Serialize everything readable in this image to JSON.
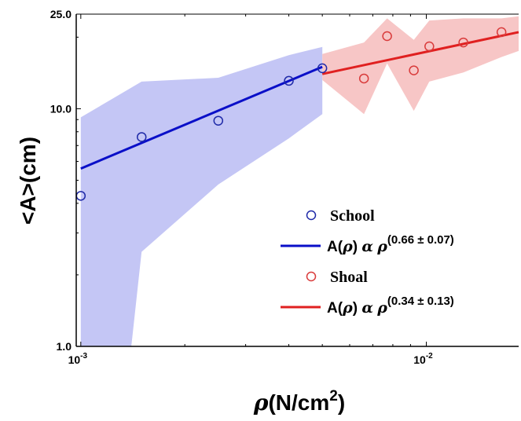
{
  "chart_data": {
    "type": "scatter",
    "x_scale": "log",
    "y_scale": "log",
    "xlim": [
      0.00097,
      0.0185
    ],
    "ylim": [
      1.0,
      25.0
    ],
    "grid": false,
    "legend_position": "bottom-right",
    "xlabel": {
      "prefix": "ρ",
      "main": "(N/cm",
      "sup": "2",
      "suffix": ")"
    },
    "ylabel": "<A>(cm)",
    "x_ticks": [
      {
        "value": 0.001,
        "base": "10",
        "exp": "-3"
      },
      {
        "value": 0.01,
        "base": "10",
        "exp": "-2"
      }
    ],
    "y_ticks": [
      {
        "value": 1.0,
        "label": "1.0"
      },
      {
        "value": 10.0,
        "label": "10.0"
      },
      {
        "value": 25.0,
        "label": "25.0"
      }
    ],
    "series": [
      {
        "name": "School",
        "color": "#1f2aa8",
        "marker": "open-circle",
        "points": [
          {
            "x": 0.001,
            "y": 4.3
          },
          {
            "x": 0.0015,
            "y": 7.6
          },
          {
            "x": 0.0025,
            "y": 8.9
          },
          {
            "x": 0.004,
            "y": 13.1
          },
          {
            "x": 0.005,
            "y": 14.8
          }
        ],
        "band": {
          "color": "#c4c6f5",
          "upper": [
            {
              "x": 0.001,
              "y": 9.2
            },
            {
              "x": 0.0015,
              "y": 13.0
            },
            {
              "x": 0.0025,
              "y": 13.5
            },
            {
              "x": 0.004,
              "y": 16.8
            },
            {
              "x": 0.005,
              "y": 18.2
            }
          ],
          "lower": [
            {
              "x": 0.001,
              "y": 1.0
            },
            {
              "x": 0.0014,
              "y": 1.0
            },
            {
              "x": 0.0015,
              "y": 2.5
            },
            {
              "x": 0.0025,
              "y": 4.8
            },
            {
              "x": 0.004,
              "y": 7.5
            },
            {
              "x": 0.005,
              "y": 9.5
            }
          ]
        },
        "fit_line": {
          "color": "#0a0fc8",
          "from": {
            "x": 0.001,
            "y": 5.6
          },
          "to": {
            "x": 0.005,
            "y": 15.0
          }
        },
        "fit_label": {
          "main": "A(",
          "rho": "ρ",
          "close": ")",
          "alpha": "α",
          "rho2": "ρ",
          "exponent": "(0.66 ± 0.07)"
        }
      },
      {
        "name": "Shoal",
        "color": "#d93b3b",
        "marker": "open-circle",
        "points": [
          {
            "x": 0.0066,
            "y": 13.4
          },
          {
            "x": 0.0077,
            "y": 20.2
          },
          {
            "x": 0.0092,
            "y": 14.5
          },
          {
            "x": 0.0102,
            "y": 18.3
          },
          {
            "x": 0.0128,
            "y": 19.0
          },
          {
            "x": 0.0165,
            "y": 21.0
          }
        ],
        "band": {
          "color": "#f7c6c6",
          "upper": [
            {
              "x": 0.005,
              "y": 17.0
            },
            {
              "x": 0.0066,
              "y": 19.0
            },
            {
              "x": 0.0077,
              "y": 24.0
            },
            {
              "x": 0.0092,
              "y": 19.5
            },
            {
              "x": 0.0102,
              "y": 23.5
            },
            {
              "x": 0.0128,
              "y": 24.0
            },
            {
              "x": 0.0165,
              "y": 24.0
            },
            {
              "x": 0.0185,
              "y": 24.5
            }
          ],
          "lower": [
            {
              "x": 0.005,
              "y": 13.2
            },
            {
              "x": 0.0066,
              "y": 9.5
            },
            {
              "x": 0.0077,
              "y": 15.5
            },
            {
              "x": 0.0092,
              "y": 9.8
            },
            {
              "x": 0.0102,
              "y": 13.0
            },
            {
              "x": 0.0128,
              "y": 14.2
            },
            {
              "x": 0.0165,
              "y": 16.5
            },
            {
              "x": 0.0185,
              "y": 17.5
            }
          ]
        },
        "fit_line": {
          "color": "#e02020",
          "from": {
            "x": 0.005,
            "y": 14.0
          },
          "to": {
            "x": 0.0185,
            "y": 21.0
          }
        },
        "fit_label": {
          "main": "A(",
          "rho": "ρ",
          "close": ")",
          "alpha": "α",
          "rho2": "ρ",
          "exponent": "(0.34 ± 0.13)"
        }
      }
    ]
  }
}
